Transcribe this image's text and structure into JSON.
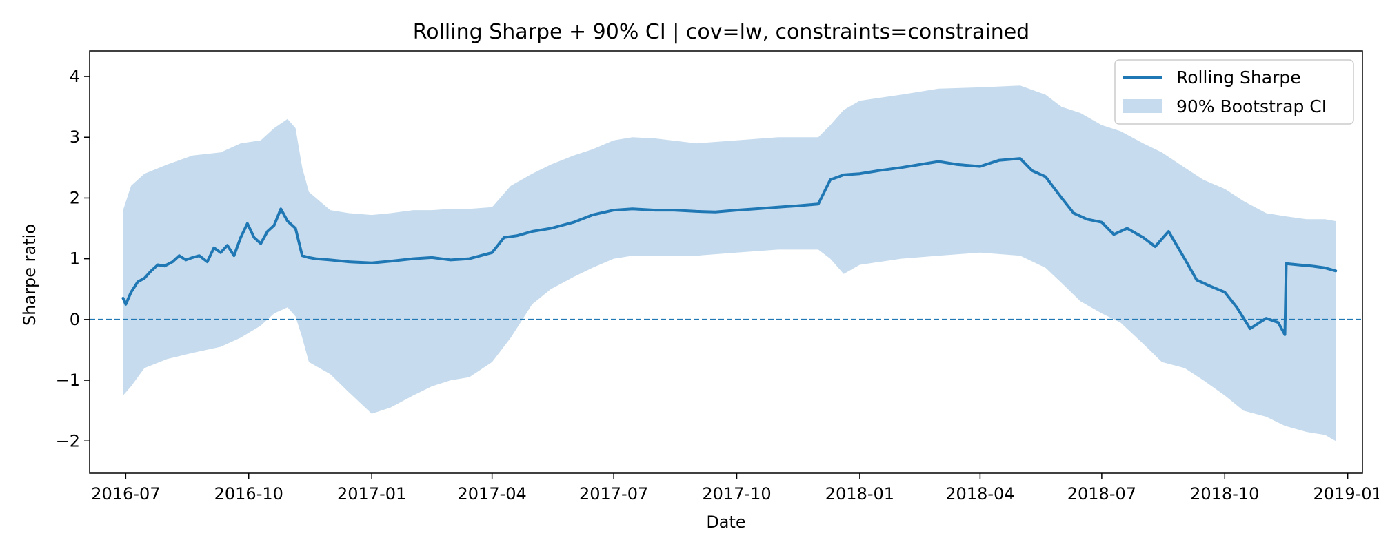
{
  "chart_data": {
    "type": "line",
    "title": "Rolling Sharpe + 90% CI | cov=lw, constraints=constrained",
    "xlabel": "Date",
    "ylabel": "Sharpe ratio",
    "x_ticks": [
      {
        "date": "2016-07-01",
        "label": "2016-07"
      },
      {
        "date": "2016-10-01",
        "label": "2016-10"
      },
      {
        "date": "2017-01-01",
        "label": "2017-01"
      },
      {
        "date": "2017-04-01",
        "label": "2017-04"
      },
      {
        "date": "2017-07-01",
        "label": "2017-07"
      },
      {
        "date": "2017-10-01",
        "label": "2017-10"
      },
      {
        "date": "2018-01-01",
        "label": "2018-01"
      },
      {
        "date": "2018-04-01",
        "label": "2018-04"
      },
      {
        "date": "2018-07-01",
        "label": "2018-07"
      },
      {
        "date": "2018-10-01",
        "label": "2018-10"
      },
      {
        "date": "2019-01-01",
        "label": "2019-01"
      }
    ],
    "y_ticks": [
      {
        "value": -2,
        "label": "−2"
      },
      {
        "value": -1,
        "label": "−1"
      },
      {
        "value": 0,
        "label": "0"
      },
      {
        "value": 1,
        "label": "1"
      },
      {
        "value": 2,
        "label": "2"
      },
      {
        "value": 3,
        "label": "3"
      },
      {
        "value": 4,
        "label": "4"
      }
    ],
    "xlim": [
      "2016-06-04",
      "2019-01-12"
    ],
    "ylim": [
      -2.53,
      4.42
    ],
    "reference_line": {
      "y": 0,
      "style": "dashed"
    },
    "grid": false,
    "legend": {
      "position": "upper right",
      "entries": [
        {
          "label": "Rolling Sharpe",
          "kind": "line"
        },
        {
          "label": "90% Bootstrap CI",
          "kind": "band"
        }
      ]
    },
    "colors": {
      "line": "#1f77b4",
      "band": "#c6dbed"
    },
    "series": [
      {
        "name": "Rolling Sharpe",
        "x": [
          "2016-06-29",
          "2016-07-01",
          "2016-07-05",
          "2016-07-10",
          "2016-07-15",
          "2016-07-20",
          "2016-07-25",
          "2016-07-30",
          "2016-08-05",
          "2016-08-10",
          "2016-08-15",
          "2016-08-20",
          "2016-08-25",
          "2016-08-31",
          "2016-09-05",
          "2016-09-10",
          "2016-09-15",
          "2016-09-20",
          "2016-09-25",
          "2016-09-30",
          "2016-10-05",
          "2016-10-10",
          "2016-10-15",
          "2016-10-20",
          "2016-10-25",
          "2016-10-30",
          "2016-11-05",
          "2016-11-10",
          "2016-11-15",
          "2016-11-20",
          "2016-12-01",
          "2016-12-15",
          "2017-01-01",
          "2017-01-15",
          "2017-02-01",
          "2017-02-15",
          "2017-03-01",
          "2017-03-15",
          "2017-04-01",
          "2017-04-10",
          "2017-04-20",
          "2017-05-01",
          "2017-05-15",
          "2017-06-01",
          "2017-06-15",
          "2017-07-01",
          "2017-07-15",
          "2017-08-01",
          "2017-08-15",
          "2017-09-01",
          "2017-09-15",
          "2017-10-01",
          "2017-10-15",
          "2017-11-01",
          "2017-11-15",
          "2017-12-01",
          "2017-12-10",
          "2017-12-20",
          "2018-01-01",
          "2018-01-15",
          "2018-02-01",
          "2018-02-15",
          "2018-03-01",
          "2018-03-15",
          "2018-04-01",
          "2018-04-15",
          "2018-05-01",
          "2018-05-10",
          "2018-05-20",
          "2018-06-01",
          "2018-06-10",
          "2018-06-20",
          "2018-07-01",
          "2018-07-10",
          "2018-07-20",
          "2018-08-01",
          "2018-08-10",
          "2018-08-20",
          "2018-09-01",
          "2018-09-10",
          "2018-09-20",
          "2018-10-01",
          "2018-10-10",
          "2018-10-20",
          "2018-11-01",
          "2018-11-10",
          "2018-11-15",
          "2018-11-16",
          "2018-11-25",
          "2018-12-05",
          "2018-12-15",
          "2018-12-23"
        ],
        "values": [
          0.35,
          0.25,
          0.45,
          0.62,
          0.68,
          0.8,
          0.9,
          0.88,
          0.95,
          1.05,
          0.98,
          1.02,
          1.05,
          0.95,
          1.18,
          1.1,
          1.22,
          1.05,
          1.35,
          1.58,
          1.35,
          1.25,
          1.45,
          1.55,
          1.82,
          1.62,
          1.5,
          1.05,
          1.02,
          1.0,
          0.98,
          0.95,
          0.93,
          0.96,
          1.0,
          1.02,
          0.98,
          1.0,
          1.1,
          1.35,
          1.38,
          1.45,
          1.5,
          1.6,
          1.72,
          1.8,
          1.82,
          1.8,
          1.8,
          1.78,
          1.77,
          1.8,
          1.82,
          1.85,
          1.87,
          1.9,
          2.3,
          2.38,
          2.4,
          2.45,
          2.5,
          2.55,
          2.6,
          2.55,
          2.52,
          2.62,
          2.65,
          2.45,
          2.35,
          2.0,
          1.75,
          1.65,
          1.6,
          1.4,
          1.5,
          1.35,
          1.2,
          1.45,
          1.0,
          0.65,
          0.55,
          0.45,
          0.2,
          -0.15,
          0.02,
          -0.05,
          -0.25,
          0.92,
          0.9,
          0.88,
          0.85,
          0.8
        ]
      },
      {
        "name": "90% Bootstrap CI",
        "x": [
          "2016-06-29",
          "2016-07-05",
          "2016-07-15",
          "2016-08-01",
          "2016-08-20",
          "2016-09-10",
          "2016-09-25",
          "2016-10-10",
          "2016-10-20",
          "2016-10-30",
          "2016-11-05",
          "2016-11-10",
          "2016-11-15",
          "2016-12-01",
          "2016-12-15",
          "2017-01-01",
          "2017-01-15",
          "2017-02-01",
          "2017-02-15",
          "2017-03-01",
          "2017-03-15",
          "2017-04-01",
          "2017-04-15",
          "2017-05-01",
          "2017-05-15",
          "2017-06-01",
          "2017-06-15",
          "2017-07-01",
          "2017-07-15",
          "2017-08-01",
          "2017-09-01",
          "2017-10-01",
          "2017-11-01",
          "2017-12-01",
          "2017-12-10",
          "2017-12-20",
          "2018-01-01",
          "2018-02-01",
          "2018-03-01",
          "2018-04-01",
          "2018-05-01",
          "2018-05-20",
          "2018-06-01",
          "2018-06-15",
          "2018-07-01",
          "2018-07-15",
          "2018-08-01",
          "2018-08-15",
          "2018-09-01",
          "2018-09-15",
          "2018-10-01",
          "2018-10-15",
          "2018-11-01",
          "2018-11-15",
          "2018-12-01",
          "2018-12-15",
          "2018-12-23"
        ],
        "upper": [
          1.8,
          2.2,
          2.4,
          2.55,
          2.7,
          2.75,
          2.9,
          2.95,
          3.15,
          3.3,
          3.15,
          2.5,
          2.1,
          1.8,
          1.75,
          1.72,
          1.75,
          1.8,
          1.8,
          1.82,
          1.82,
          1.85,
          2.2,
          2.4,
          2.55,
          2.7,
          2.8,
          2.95,
          3.0,
          2.98,
          2.9,
          2.95,
          3.0,
          3.0,
          3.2,
          3.45,
          3.6,
          3.7,
          3.8,
          3.82,
          3.85,
          3.7,
          3.5,
          3.4,
          3.2,
          3.1,
          2.9,
          2.75,
          2.5,
          2.3,
          2.15,
          1.95,
          1.75,
          1.7,
          1.65,
          1.65,
          1.62
        ],
        "lower": [
          -1.25,
          -1.1,
          -0.8,
          -0.65,
          -0.55,
          -0.45,
          -0.3,
          -0.1,
          0.1,
          0.2,
          0.05,
          -0.3,
          -0.7,
          -0.9,
          -1.2,
          -1.55,
          -1.45,
          -1.25,
          -1.1,
          -1.0,
          -0.95,
          -0.7,
          -0.3,
          0.25,
          0.5,
          0.7,
          0.85,
          1.0,
          1.05,
          1.05,
          1.05,
          1.1,
          1.15,
          1.15,
          1.0,
          0.75,
          0.9,
          1.0,
          1.05,
          1.1,
          1.05,
          0.85,
          0.6,
          0.3,
          0.1,
          -0.05,
          -0.4,
          -0.7,
          -0.8,
          -1.0,
          -1.25,
          -1.5,
          -1.6,
          -1.75,
          -1.85,
          -1.9,
          -2.0
        ]
      }
    ]
  }
}
